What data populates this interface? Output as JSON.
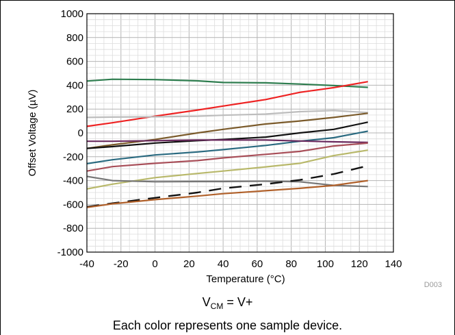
{
  "chart_data": {
    "type": "line",
    "xlabel": "Temperature (°C)",
    "ylabel": "Offset Voltage (µV)",
    "xlim": [
      -40,
      140
    ],
    "ylim": [
      -1000,
      1000
    ],
    "xticks": [
      -40,
      -20,
      0,
      20,
      40,
      60,
      80,
      100,
      120,
      140
    ],
    "yticks": [
      1000,
      800,
      600,
      400,
      200,
      0,
      -200,
      -400,
      -600,
      -800,
      -1000
    ],
    "grid": true,
    "figure_id": "D003",
    "series": [
      {
        "color": "#2e7d4f",
        "x": [
          -40,
          -25,
          0,
          25,
          40,
          65,
          85,
          105,
          125
        ],
        "y": [
          435,
          450,
          447,
          437,
          423,
          420,
          410,
          397,
          382
        ]
      },
      {
        "color": "#ee2222",
        "x": [
          -40,
          -25,
          0,
          25,
          40,
          65,
          85,
          105,
          125
        ],
        "y": [
          55,
          85,
          140,
          192,
          225,
          280,
          340,
          380,
          430
        ]
      },
      {
        "color": "#bdbdbd",
        "x": [
          -40,
          -25,
          0,
          25,
          40,
          65,
          85,
          105,
          125
        ],
        "y": [
          130,
          133,
          135,
          140,
          148,
          158,
          178,
          188,
          170
        ]
      },
      {
        "color": "#7a5a2a",
        "x": [
          -40,
          -25,
          0,
          25,
          40,
          65,
          85,
          105,
          125
        ],
        "y": [
          -130,
          -100,
          -55,
          0,
          30,
          75,
          100,
          130,
          165
        ]
      },
      {
        "color": "#111111",
        "x": [
          -40,
          -25,
          0,
          25,
          40,
          65,
          85,
          105,
          125
        ],
        "y": [
          -130,
          -115,
          -85,
          -65,
          -55,
          -35,
          0,
          30,
          90
        ]
      },
      {
        "color": "#2a6a80",
        "x": [
          -40,
          -25,
          0,
          25,
          40,
          65,
          85,
          105,
          125
        ],
        "y": [
          -258,
          -225,
          -185,
          -160,
          -140,
          -105,
          -70,
          -40,
          15
        ]
      },
      {
        "color": "#6a2a5e",
        "x": [
          -40,
          -25,
          0,
          25,
          40,
          65,
          85,
          105,
          125
        ],
        "y": [
          -70,
          -70,
          -65,
          -60,
          -60,
          -60,
          -68,
          -75,
          -80
        ]
      },
      {
        "color": "#a84e58",
        "x": [
          -40,
          -25,
          0,
          25,
          40,
          65,
          85,
          105,
          125
        ],
        "y": [
          -320,
          -283,
          -255,
          -232,
          -210,
          -180,
          -155,
          -110,
          -85
        ]
      },
      {
        "color": "#b8b86a",
        "x": [
          -40,
          -25,
          0,
          25,
          40,
          65,
          85,
          105,
          125
        ],
        "y": [
          -470,
          -430,
          -375,
          -340,
          -320,
          -285,
          -255,
          -190,
          -145
        ]
      },
      {
        "color": "#777777",
        "x": [
          -40,
          -25,
          0,
          25,
          40,
          65,
          85,
          105,
          125
        ],
        "y": [
          -365,
          -400,
          -410,
          -408,
          -408,
          -405,
          -410,
          -440,
          -450
        ]
      },
      {
        "color": "#111111",
        "dashed": true,
        "x": [
          -40,
          -25,
          0,
          25,
          40,
          65,
          85,
          105,
          125
        ],
        "y": [
          -620,
          -590,
          -545,
          -500,
          -465,
          -430,
          -395,
          -345,
          -275
        ]
      },
      {
        "color": "#b0602a",
        "x": [
          -40,
          -25,
          0,
          25,
          40,
          65,
          85,
          105,
          125
        ],
        "y": [
          -625,
          -595,
          -560,
          -530,
          -510,
          -485,
          -465,
          -440,
          -400
        ]
      }
    ]
  },
  "caption": {
    "condition_main": "V",
    "condition_sub": "CM",
    "condition_rest": " = V+",
    "note": "Each color represents one sample device."
  }
}
